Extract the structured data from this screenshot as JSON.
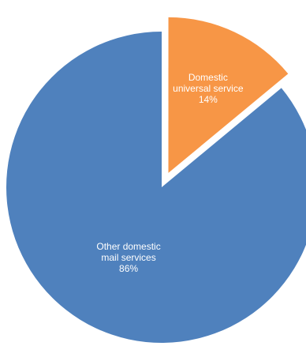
{
  "chart_data": {
    "type": "pie",
    "exploded_slice": "Domestic universal service",
    "slices": [
      {
        "name": "Domestic universal service",
        "value": 14,
        "color": "#F79646",
        "label_lines": [
          "Domestic",
          "universal service",
          "14%"
        ]
      },
      {
        "name": "Other domestic mail services",
        "value": 86,
        "color": "#4F81BD",
        "label_lines": [
          "Other domestic",
          "mail services",
          "86%"
        ]
      }
    ]
  }
}
